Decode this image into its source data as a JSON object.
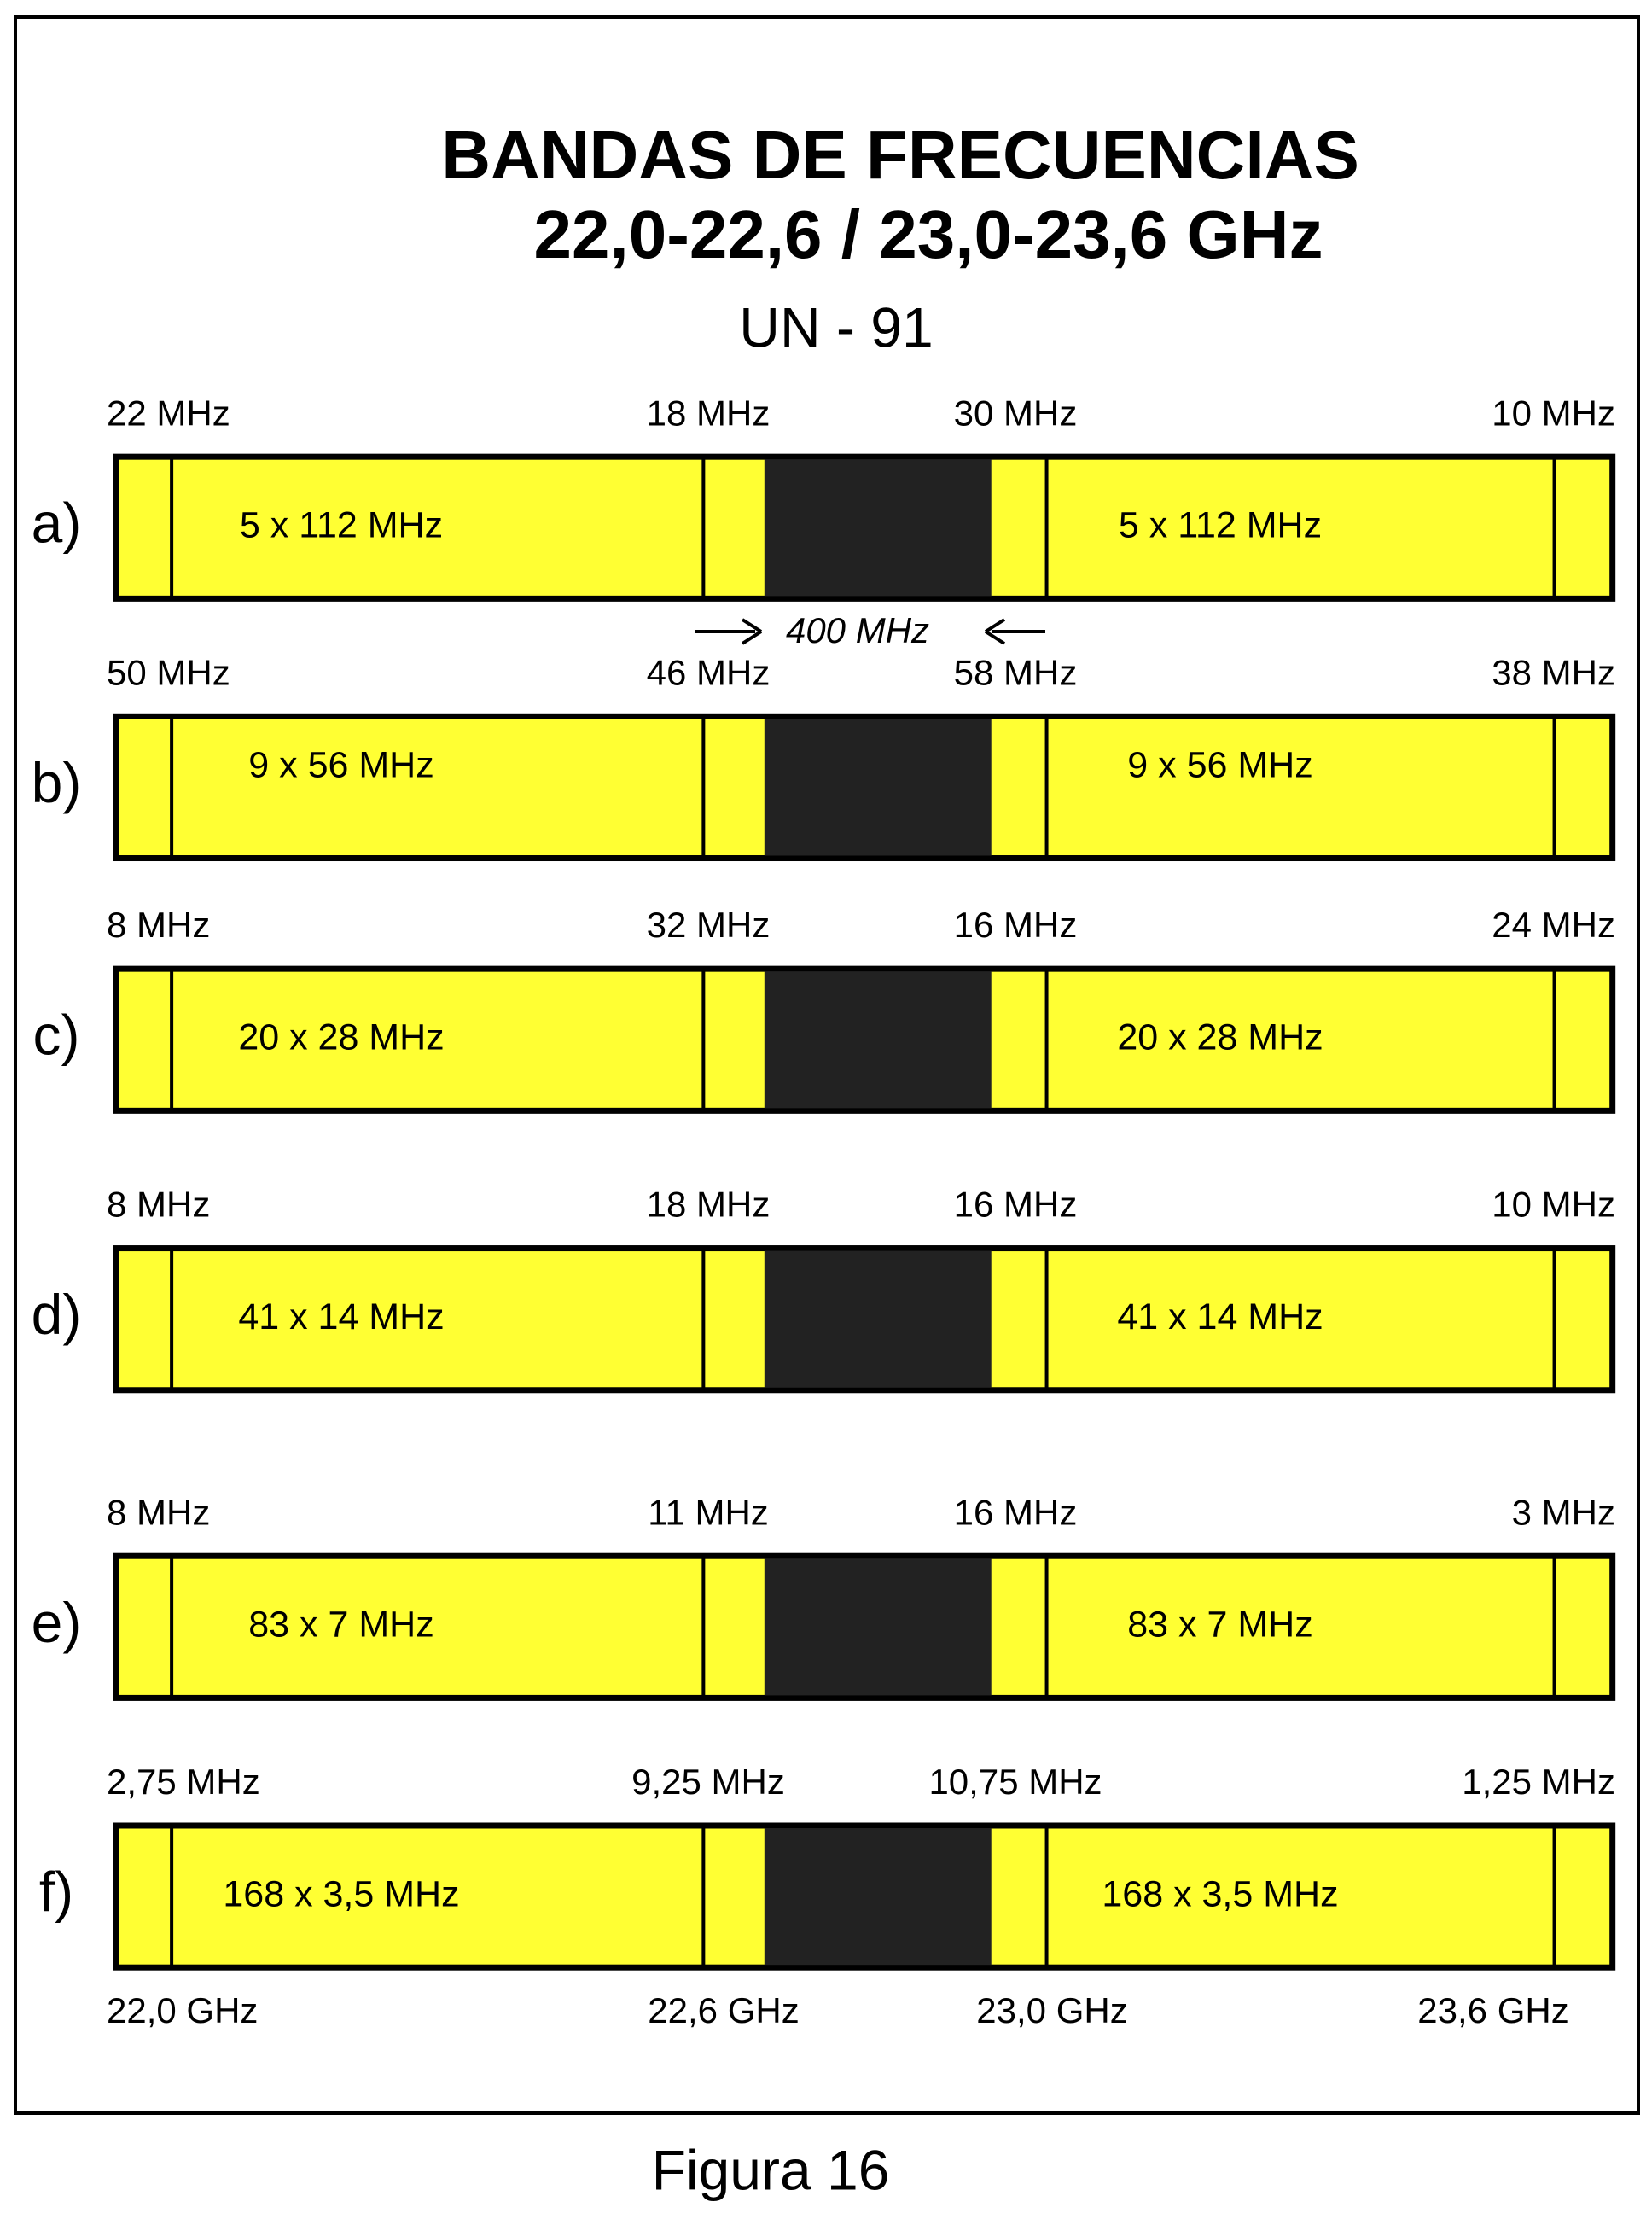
{
  "title": {
    "line1": "BANDAS DE FRECUENCIAS",
    "line2": "22,0-22,6 / 23,0-23,6 GHz",
    "subtitle": "UN - 91"
  },
  "rows": [
    {
      "label": "a)",
      "edges": [
        "22 MHz",
        "18 MHz",
        "30 MHz",
        "10 MHz"
      ],
      "channels": [
        "5 x 112 MHz",
        "5 x 112 MHz"
      ]
    },
    {
      "label": "b)",
      "edges": [
        "50 MHz",
        "46 MHz",
        "58 MHz",
        "38 MHz"
      ],
      "channels": [
        "9 x 56 MHz",
        "9 x 56 MHz"
      ]
    },
    {
      "label": "c)",
      "edges": [
        "8 MHz",
        "32 MHz",
        "16 MHz",
        "24 MHz"
      ],
      "channels": [
        "20 x 28 MHz",
        "20 x 28 MHz"
      ]
    },
    {
      "label": "d)",
      "edges": [
        "8 MHz",
        "18 MHz",
        "16 MHz",
        "10 MHz"
      ],
      "channels": [
        "41 x 14 MHz",
        "41 x 14 MHz"
      ]
    },
    {
      "label": "e)",
      "edges": [
        "8 MHz",
        "11 MHz",
        "16 MHz",
        "3 MHz"
      ],
      "channels": [
        "83 x 7 MHz",
        "83 x 7 MHz"
      ]
    },
    {
      "label": "f)",
      "edges": [
        "2,75 MHz",
        "9,25 MHz",
        "10,75 MHz",
        "1,25 MHz"
      ],
      "channels": [
        "168 x 3,5 MHz",
        "168 x 3,5 MHz"
      ]
    }
  ],
  "gap_label": "400 MHz",
  "axis": [
    "22,0 GHz",
    "22,6 GHz",
    "23,0 GHz",
    "23,6 GHz"
  ],
  "caption": "Figura 16"
}
